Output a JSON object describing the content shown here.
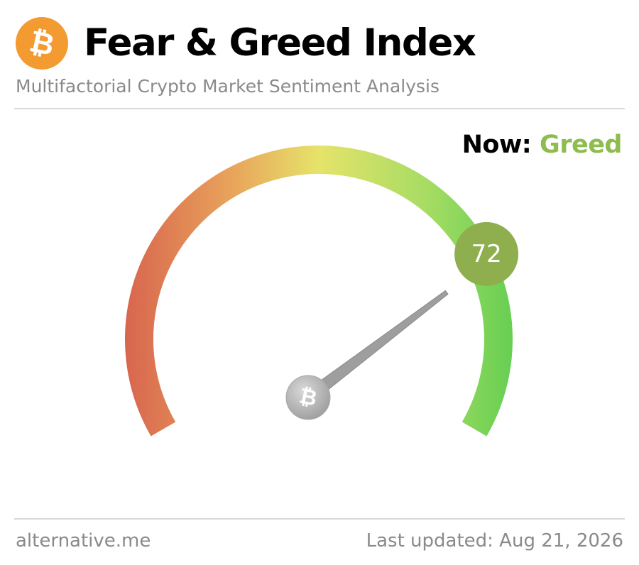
{
  "header": {
    "logo_icon": "bitcoin-icon",
    "logo_glyph": "₿",
    "title": "Fear & Greed Index",
    "subtitle": "Multifactorial Crypto Market Sentiment Analysis"
  },
  "status": {
    "now_label": "Now:",
    "now_value": "Greed"
  },
  "gauge": {
    "value": 72,
    "value_text": "72",
    "min": 0,
    "max": 100,
    "hub_icon": "bitcoin-icon",
    "hub_glyph": "₿"
  },
  "colors": {
    "brand_orange": "#f39a31",
    "greed_green": "#8fbc4f",
    "badge_green": "#8faf4e",
    "needle_gray": "#9e9e9e",
    "fear_red": "#d8654f",
    "neutral_yellow": "#e6e36a",
    "extreme_greed_green": "#72d154"
  },
  "footer": {
    "site": "alternative.me",
    "last_updated": "Last updated: Aug 21, 2026"
  }
}
